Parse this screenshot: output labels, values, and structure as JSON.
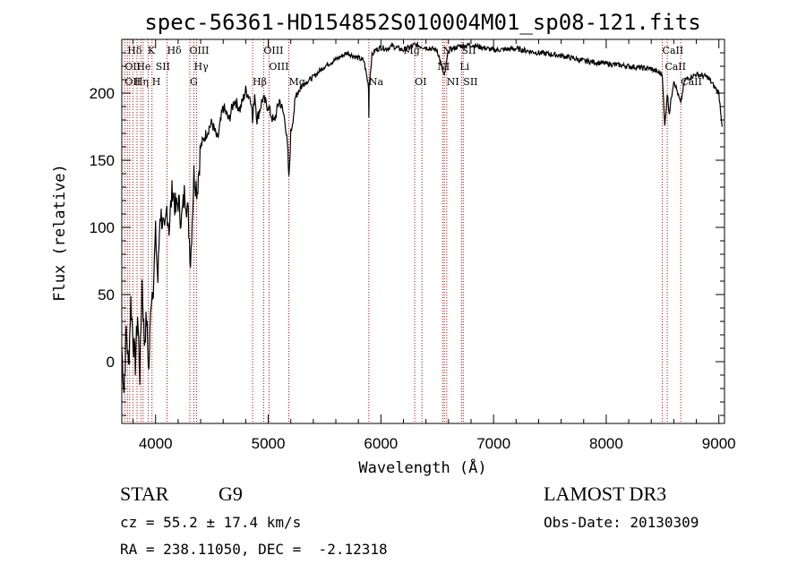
{
  "chart_data": {
    "type": "line",
    "title": "spec-56361-HD154852S010004M01_sp08-121.fits",
    "xlabel": "Wavelength (Å)",
    "ylabel": "Flux (relative)",
    "xlim": [
      3700,
      9050
    ],
    "ylim": [
      -46,
      240
    ],
    "xticks": [
      4000,
      5000,
      6000,
      7000,
      8000,
      9000
    ],
    "yticks": [
      0,
      50,
      100,
      150,
      200
    ],
    "series": [
      {
        "name": "flux",
        "x": [
          3700,
          3720,
          3740,
          3760,
          3780,
          3800,
          3820,
          3840,
          3860,
          3880,
          3900,
          3920,
          3940,
          3960,
          3980,
          4000,
          4020,
          4040,
          4060,
          4080,
          4100,
          4120,
          4150,
          4180,
          4200,
          4230,
          4260,
          4290,
          4310,
          4340,
          4370,
          4400,
          4450,
          4500,
          4550,
          4600,
          4650,
          4700,
          4750,
          4800,
          4850,
          4861,
          4880,
          4900,
          4950,
          5000,
          5050,
          5100,
          5150,
          5175,
          5183,
          5200,
          5250,
          5300,
          5400,
          5500,
          5600,
          5700,
          5800,
          5850,
          5890,
          5893,
          5896,
          5920,
          5950,
          6000,
          6050,
          6100,
          6200,
          6300,
          6400,
          6500,
          6563,
          6600,
          6700,
          6800,
          6900,
          7000,
          7200,
          7400,
          7600,
          7800,
          8000,
          8200,
          8400,
          8498,
          8520,
          8542,
          8560,
          8600,
          8662,
          8680,
          8700,
          8800,
          8900,
          8950,
          9000,
          9030
        ],
        "values": [
          10,
          -22,
          25,
          -5,
          45,
          18,
          -2,
          35,
          -10,
          60,
          15,
          32,
          -8,
          48,
          58,
          95,
          60,
          112,
          105,
          92,
          115,
          100,
          130,
          112,
          120,
          105,
          128,
          108,
          75,
          140,
          128,
          160,
          170,
          178,
          165,
          190,
          180,
          195,
          188,
          202,
          195,
          178,
          200,
          180,
          196,
          190,
          178,
          195,
          180,
          155,
          135,
          170,
          200,
          206,
          212,
          220,
          225,
          230,
          226,
          224,
          205,
          182,
          206,
          228,
          232,
          234,
          233,
          235,
          232,
          236,
          234,
          232,
          212,
          232,
          235,
          236,
          234,
          232,
          233,
          230,
          228,
          224,
          222,
          220,
          218,
          214,
          175,
          200,
          185,
          210,
          192,
          202,
          210,
          214,
          212,
          206,
          200,
          175
        ]
      }
    ],
    "lines": {
      "row1": [
        {
          "label": "Hδ",
          "x": 3750
        },
        {
          "label": "K",
          "x": 3930
        },
        {
          "label": "Hδ",
          "x": 4101
        },
        {
          "label": "OIII",
          "x": 4300
        },
        {
          "label": "OIII",
          "x": 4959
        },
        {
          "label": "Mg",
          "x": 6200
        },
        {
          "label": "N",
          "x": 6548
        },
        {
          "label": "SII",
          "x": 6716
        },
        {
          "label": "CaII",
          "x": 8498
        }
      ],
      "row2": [
        {
          "label": "OII",
          "x": 3727
        },
        {
          "label": "He",
          "x": 3830
        },
        {
          "label": "SII",
          "x": 4000
        },
        {
          "label": "Hγ",
          "x": 4340
        },
        {
          "label": "OIII",
          "x": 5007
        },
        {
          "label": "NI",
          "x": 6500
        },
        {
          "label": "Li",
          "x": 6700
        },
        {
          "label": "CaII",
          "x": 8520
        }
      ],
      "row3": [
        {
          "label": "OII",
          "x": 3727
        },
        {
          "label": "Hη",
          "x": 3810
        },
        {
          "label": "H",
          "x": 3968
        },
        {
          "label": "G",
          "x": 4304
        },
        {
          "label": "Hβ",
          "x": 4861
        },
        {
          "label": "Mg",
          "x": 5183
        },
        {
          "label": "Na",
          "x": 5893
        },
        {
          "label": "OI",
          "x": 6300
        },
        {
          "label": "NI",
          "x": 6584
        },
        {
          "label": "SII",
          "x": 6731
        },
        {
          "label": "CaII",
          "x": 8662
        }
      ]
    },
    "marker_x": [
      3727,
      3750,
      3770,
      3798,
      3835,
      3869,
      3889,
      3934,
      3968,
      4101,
      4304,
      4340,
      4363,
      4861,
      4959,
      5007,
      5183,
      5893,
      6300,
      6364,
      6548,
      6563,
      6584,
      6716,
      6731,
      8498,
      8542,
      8662
    ]
  },
  "info": {
    "object_class": "STAR",
    "subclass": "G9",
    "survey": "LAMOST DR3",
    "cz": "cz = 55.2 ± 17.4 km/s",
    "obs_date": "Obs-Date: 20130309",
    "coords": "RA = 238.11050, DEC =  -2.12318"
  }
}
